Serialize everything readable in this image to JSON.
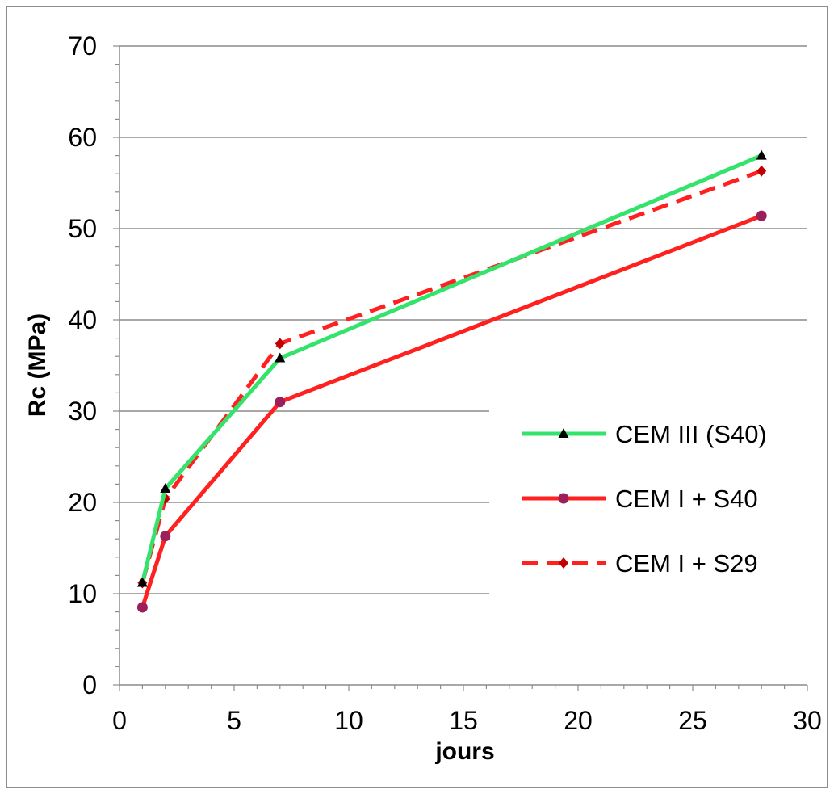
{
  "chart_data": {
    "type": "line",
    "title": "",
    "xlabel": "jours",
    "ylabel": "Rc (MPa)",
    "xlim": [
      0,
      30
    ],
    "ylim": [
      0,
      70
    ],
    "x_ticks": [
      0,
      5,
      10,
      15,
      20,
      25,
      30
    ],
    "y_ticks": [
      0,
      10,
      20,
      30,
      40,
      50,
      60,
      70
    ],
    "grid": "horizontal",
    "legend_position": "right",
    "series": [
      {
        "name": "CEM III (S40)",
        "color": "#33e36b",
        "line_style": "solid",
        "marker": "triangle",
        "marker_color": "#000000",
        "x": [
          1,
          2,
          7,
          28
        ],
        "y": [
          11.2,
          21.5,
          35.8,
          58.0
        ]
      },
      {
        "name": "CEM I + S40",
        "color": "#ff2020",
        "line_style": "solid",
        "marker": "circle",
        "marker_color": "#9b1f5a",
        "x": [
          1,
          2,
          7,
          28
        ],
        "y": [
          8.5,
          16.3,
          31.0,
          51.4
        ]
      },
      {
        "name": "CEM I + S29",
        "color": "#ff2020",
        "line_style": "dashed",
        "marker": "diamond",
        "marker_color": "#c00000",
        "x": [
          1,
          2,
          7,
          28
        ],
        "y": [
          11.2,
          20.4,
          37.4,
          56.3
        ]
      }
    ]
  }
}
